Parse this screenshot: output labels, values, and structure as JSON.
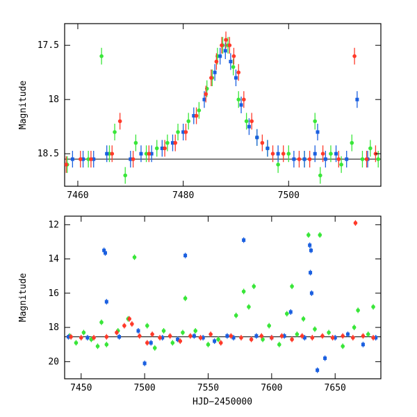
{
  "figure": {
    "xlabel": "HJD−2450000"
  },
  "colors": {
    "green": "#39e639",
    "blue": "#1a5fe0",
    "red": "#ff3a2a",
    "axis": "#000000"
  },
  "chart_data": [
    {
      "type": "scatter",
      "ylabel": "Magnitude",
      "xlim": [
        7457.5,
        7517.5
      ],
      "ylim": [
        18.8,
        17.3
      ],
      "xticks": [
        7460,
        7480,
        7500
      ],
      "xtick_labels": [
        "7460",
        "7480",
        "7500"
      ],
      "yticks": [
        17.5,
        18,
        18.5
      ],
      "ytick_labels": [
        "17.5",
        "18",
        "18.5"
      ],
      "grid": false,
      "series": [
        {
          "color": "green",
          "x": [
            7458,
            7462,
            7464.5,
            7466,
            7467,
            7469,
            7471,
            7473,
            7475,
            7477,
            7479,
            7481,
            7483,
            7484.5,
            7485.5,
            7486.5,
            7487.5,
            7488.5,
            7489.5,
            7490.5,
            7492,
            7494,
            7496,
            7498,
            7500,
            7503,
            7505,
            7506,
            7508,
            7510,
            7512,
            7514,
            7515.5,
            7517
          ],
          "y": [
            18.6,
            18.55,
            17.6,
            18.5,
            18.3,
            18.7,
            18.4,
            18.5,
            18.45,
            18.4,
            18.3,
            18.2,
            18.1,
            17.9,
            17.8,
            17.6,
            17.5,
            17.5,
            17.7,
            18.0,
            18.2,
            18.35,
            18.45,
            18.6,
            18.5,
            18.55,
            18.2,
            18.7,
            18.5,
            18.6,
            18.4,
            18.55,
            18.45,
            18.55
          ]
        },
        {
          "color": "blue",
          "x": [
            7459,
            7461,
            7463,
            7465.5,
            7470,
            7472,
            7474,
            7476,
            7478,
            7480,
            7482,
            7484,
            7486,
            7487,
            7488,
            7489,
            7490,
            7491,
            7492.5,
            7494,
            7496,
            7498,
            7501,
            7503,
            7505,
            7505.5,
            7507,
            7509,
            7511,
            7513,
            7515
          ],
          "y": [
            18.55,
            18.55,
            18.55,
            18.5,
            18.55,
            18.5,
            18.5,
            18.45,
            18.4,
            18.3,
            18.15,
            18.0,
            17.75,
            17.6,
            17.55,
            17.65,
            17.8,
            18.05,
            18.25,
            18.35,
            18.45,
            18.5,
            18.55,
            18.55,
            18.5,
            18.3,
            18.55,
            18.5,
            18.55,
            18.0,
            18.55
          ]
        },
        {
          "color": "red",
          "x": [
            7457.8,
            7460.5,
            7462.5,
            7466.5,
            7468,
            7470.5,
            7473.5,
            7476.5,
            7478.5,
            7480.5,
            7482.5,
            7484.3,
            7485.3,
            7486.3,
            7487.3,
            7488.1,
            7488.8,
            7489.6,
            7490.5,
            7491.5,
            7493,
            7495,
            7497,
            7499,
            7502,
            7504,
            7506.5,
            7509.5,
            7512.5,
            7514.8,
            7516.5
          ],
          "y": [
            18.6,
            18.55,
            18.55,
            18.5,
            18.2,
            18.55,
            18.5,
            18.45,
            18.4,
            18.3,
            18.15,
            17.95,
            17.8,
            17.65,
            17.5,
            17.45,
            17.5,
            17.6,
            17.75,
            18.0,
            18.2,
            18.4,
            18.5,
            18.5,
            18.55,
            18.55,
            18.5,
            18.55,
            17.6,
            18.55,
            18.5
          ]
        }
      ]
    },
    {
      "type": "scatter",
      "ylabel": "Magnitude",
      "xlabel": "HJD−2450000",
      "xlim": [
        7437,
        7686
      ],
      "ylim": [
        21.0,
        11.5
      ],
      "xticks": [
        7450,
        7500,
        7550,
        7600,
        7650
      ],
      "xtick_labels": [
        "7450",
        "7500",
        "7550",
        "7600",
        "7650"
      ],
      "yticks": [
        12,
        14,
        16,
        18,
        20
      ],
      "ytick_labels": [
        "12",
        "14",
        "16",
        "18",
        "20"
      ],
      "grid": false,
      "series": [
        {
          "color": "green",
          "x": [
            7441,
            7446,
            7452,
            7458,
            7463,
            7466,
            7470,
            7479,
            7487,
            7492,
            7502,
            7508,
            7515,
            7522,
            7530,
            7532,
            7540,
            7550,
            7558,
            7572,
            7578,
            7582,
            7586,
            7593,
            7598,
            7606,
            7612,
            7616,
            7620,
            7625,
            7629,
            7634,
            7638,
            7645,
            7656,
            7665,
            7668,
            7676,
            7680
          ],
          "y": [
            18.5,
            18.9,
            18.3,
            18.7,
            19.1,
            17.7,
            19.0,
            18.2,
            17.5,
            13.9,
            17.9,
            19.2,
            18.2,
            18.9,
            18.3,
            16.3,
            18.2,
            19.0,
            18.7,
            17.3,
            15.9,
            16.8,
            15.6,
            18.7,
            17.9,
            19.0,
            17.2,
            15.6,
            18.4,
            17.5,
            12.6,
            18.1,
            12.6,
            18.3,
            19.1,
            18.0,
            17.0,
            18.4,
            16.8
          ]
        },
        {
          "color": "blue",
          "x": [
            7440,
            7455,
            7468,
            7469,
            7470,
            7480,
            7495,
            7500,
            7505,
            7514,
            7526,
            7532,
            7539,
            7546,
            7555,
            7565,
            7570,
            7578,
            7588,
            7600,
            7610,
            7615,
            7626,
            7630,
            7630.5,
            7631,
            7631.5,
            7636,
            7642,
            7650,
            7660,
            7672,
            7682
          ],
          "y": [
            18.55,
            18.6,
            13.5,
            13.65,
            16.5,
            18.55,
            18.2,
            20.1,
            18.9,
            18.6,
            18.7,
            13.8,
            18.5,
            18.6,
            18.8,
            18.5,
            18.6,
            12.9,
            18.5,
            18.6,
            18.5,
            17.1,
            18.6,
            13.2,
            14.8,
            13.5,
            16.0,
            20.5,
            19.8,
            18.6,
            18.4,
            19.0,
            18.6
          ]
        },
        {
          "color": "red",
          "x": [
            7442,
            7450,
            7460,
            7470,
            7478,
            7484,
            7488,
            7490,
            7496,
            7502,
            7506,
            7512,
            7520,
            7528,
            7536,
            7544,
            7552,
            7560,
            7568,
            7576,
            7584,
            7592,
            7600,
            7608,
            7616,
            7624,
            7632,
            7640,
            7648,
            7656,
            7664,
            7666,
            7672,
            7680
          ],
          "y": [
            18.55,
            18.6,
            18.6,
            18.55,
            18.3,
            17.9,
            17.5,
            17.8,
            18.5,
            18.9,
            18.4,
            18.6,
            18.5,
            18.8,
            18.5,
            18.6,
            18.4,
            18.9,
            18.5,
            18.6,
            18.7,
            18.5,
            18.6,
            18.5,
            18.7,
            18.5,
            18.6,
            18.5,
            18.6,
            18.5,
            18.6,
            11.9,
            18.5,
            18.6
          ]
        }
      ]
    }
  ]
}
